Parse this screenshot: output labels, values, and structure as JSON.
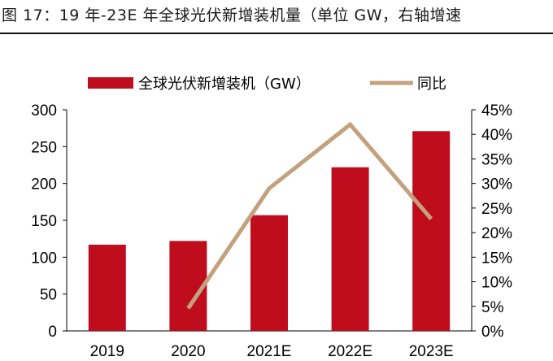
{
  "figure_title": "图 17：19 年-23E 年全球光伏新增装机量（单位 GW，右轴增速",
  "chart_data": {
    "type": "bar",
    "categories": [
      "2019",
      "2020",
      "2021E",
      "2022E",
      "2023E"
    ],
    "series": [
      {
        "name": "全球光伏新增装机（GW）",
        "type": "bar",
        "axis": "left",
        "color": "#c00d1e",
        "values": [
          117,
          122,
          157,
          222,
          271
        ]
      },
      {
        "name": "同比",
        "type": "line",
        "axis": "right",
        "color": "#c4a17e",
        "values": [
          null,
          0.046,
          0.29,
          0.42,
          0.228
        ]
      }
    ],
    "y_left": {
      "ylim": [
        0,
        300
      ],
      "ticks": [
        0,
        50,
        100,
        150,
        200,
        250,
        300
      ],
      "tick_labels": [
        "0",
        "50",
        "100",
        "150",
        "200",
        "250",
        "300"
      ]
    },
    "y_right": {
      "ylim": [
        0,
        0.45
      ],
      "ticks": [
        0,
        0.05,
        0.1,
        0.15,
        0.2,
        0.25,
        0.3,
        0.35,
        0.4,
        0.45
      ],
      "tick_labels": [
        "0%",
        "5%",
        "10%",
        "15%",
        "20%",
        "25%",
        "30%",
        "35%",
        "40%",
        "45%"
      ]
    },
    "grid": false,
    "legend": "top"
  }
}
